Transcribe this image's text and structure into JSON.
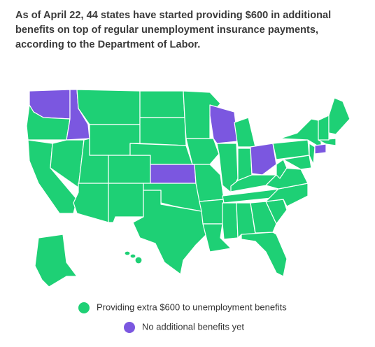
{
  "caption": "As of April 22, 44 states have started providing $600 in additional benefits on top of regular unemployment insurance payments, according to the Department of Labor.",
  "legend": [
    {
      "label": "Providing extra $600 to unemployment benefits",
      "color": "#1ed075"
    },
    {
      "label": "No additional benefits yet",
      "color": "#7b57e0"
    }
  ]
}
